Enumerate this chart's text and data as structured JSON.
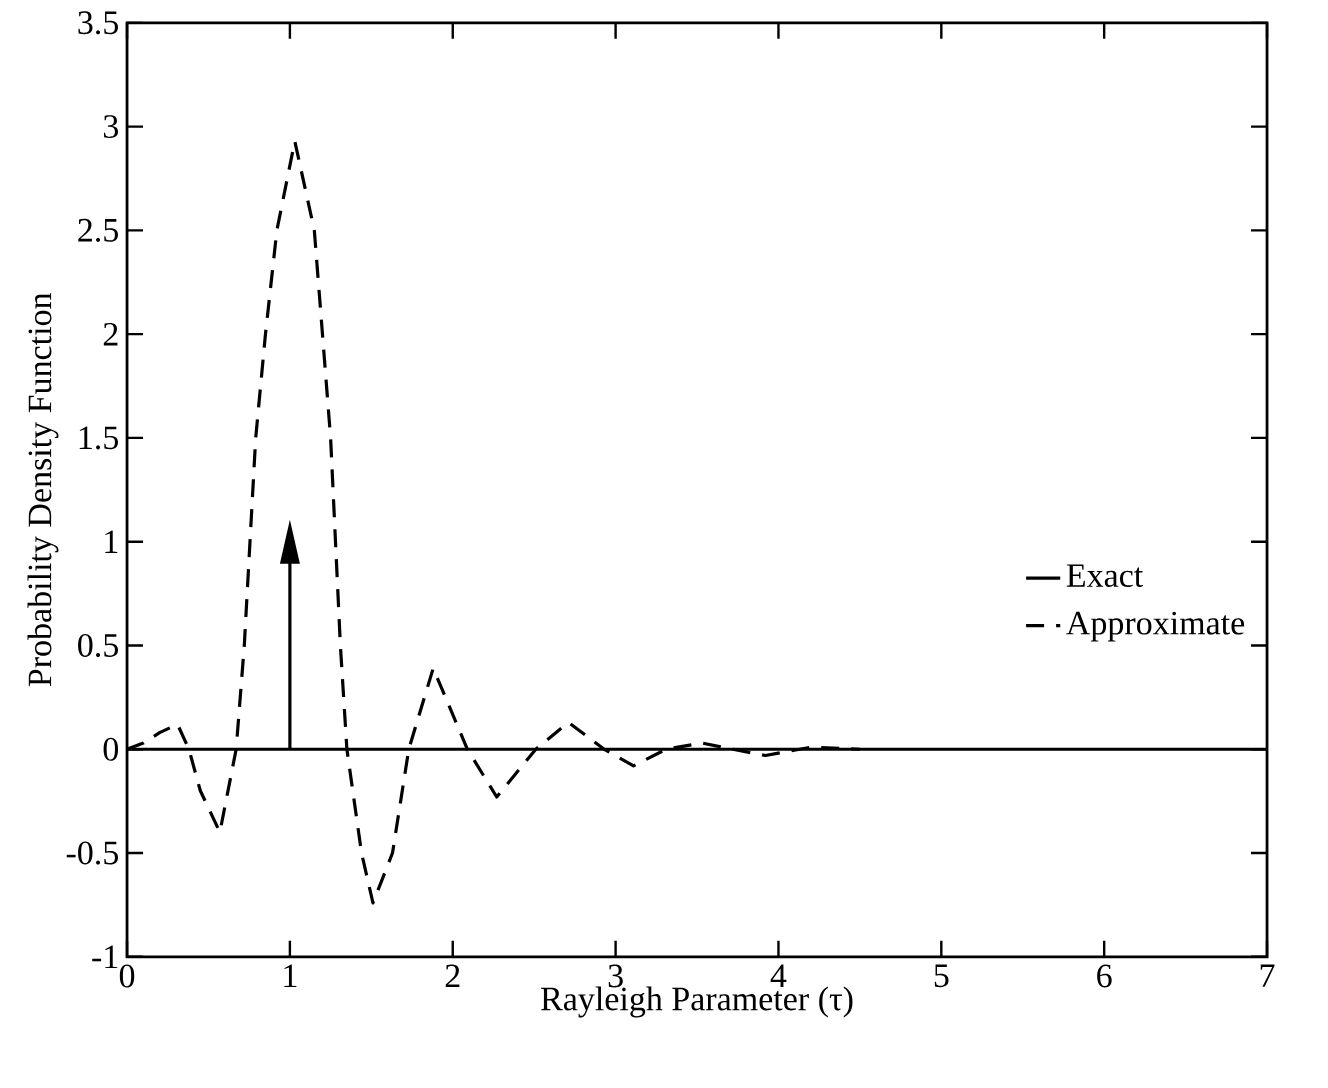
{
  "chart_data": {
    "type": "line",
    "xlabel": "Rayleigh Parameter (τ)",
    "ylabel": "Probability Density Function",
    "xlim": [
      0,
      7
    ],
    "ylim": [
      -1,
      3.5
    ],
    "xticks": [
      0,
      1,
      2,
      3,
      4,
      5,
      6,
      7
    ],
    "yticks": [
      -1,
      -0.5,
      0,
      0.5,
      1,
      1.5,
      2,
      2.5,
      3,
      3.5
    ],
    "legend": "right",
    "grid": false,
    "marker": "none",
    "series": [
      {
        "name": "Exact",
        "color": "#000000",
        "line_style": "solid",
        "x": [
          0,
          1,
          1,
          1,
          7
        ],
        "values": [
          0,
          0,
          1,
          0,
          0
        ]
      },
      {
        "name": "Approximate",
        "color": "#000000",
        "line_style": "dashed",
        "x": [
          0,
          0.1,
          0.2,
          0.31,
          0.38,
          0.45,
          0.57,
          0.67,
          0.72,
          0.79,
          0.85,
          0.92,
          1.03,
          1.15,
          1.25,
          1.31,
          1.35,
          1.44,
          1.51,
          1.63,
          1.73,
          1.88,
          2.09,
          2.27,
          2.51,
          2.71,
          2.93,
          3.11,
          3.31,
          3.53,
          3.72,
          3.92,
          4.2,
          4.5
        ],
        "values": [
          0,
          0.03,
          0.08,
          0.12,
          0,
          -0.2,
          -0.4,
          0,
          0.5,
          1.5,
          2,
          2.5,
          2.93,
          2.5,
          1.5,
          0.5,
          0,
          -0.5,
          -0.74,
          -0.5,
          0,
          0.39,
          0,
          -0.23,
          0,
          0.13,
          0,
          -0.08,
          0,
          0.03,
          0,
          -0.03,
          0.01,
          0
        ]
      }
    ]
  }
}
